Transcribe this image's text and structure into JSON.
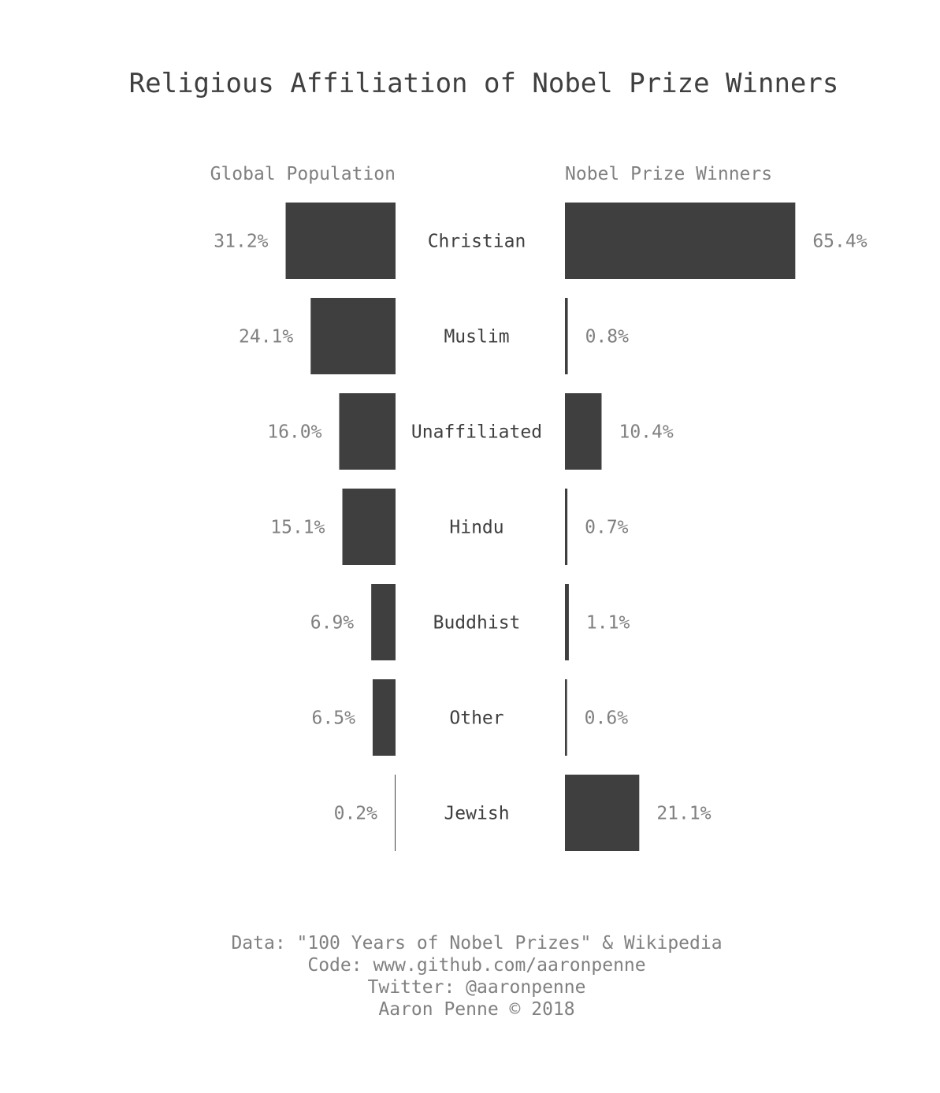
{
  "chart_data": {
    "type": "bar",
    "title": "Religious Affiliation of Nobel Prize Winners",
    "categories": [
      "Christian",
      "Muslim",
      "Unaffiliated",
      "Hindu",
      "Buddhist",
      "Other",
      "Jewish"
    ],
    "series": [
      {
        "name": "Global Population",
        "values": [
          31.2,
          24.1,
          16.0,
          15.1,
          6.9,
          6.5,
          0.2
        ],
        "labels": [
          "31.2%",
          "24.1%",
          "16.0%",
          "15.1%",
          "6.9%",
          "6.5%",
          "0.2%"
        ]
      },
      {
        "name": "Nobel Prize Winners",
        "values": [
          65.4,
          0.8,
          10.4,
          0.7,
          1.1,
          0.6,
          21.1
        ],
        "labels": [
          "65.4%",
          "0.8%",
          "10.4%",
          "0.7%",
          "1.1%",
          "0.6%",
          "21.1%"
        ]
      }
    ],
    "units": "%",
    "bar_color": "#3f3f3f",
    "grid": false,
    "legend": "none"
  },
  "credits": {
    "data_line": "Data: \"100 Years of Nobel Prizes\" & Wikipedia",
    "code_line": "Code: www.github.com/aaronpenne",
    "twitter_line": "Twitter: @aaronpenne",
    "author_line": "Aaron Penne © 2018"
  }
}
